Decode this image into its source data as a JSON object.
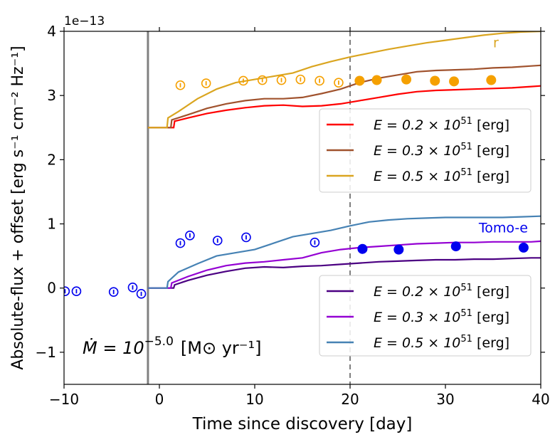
{
  "chart_data": {
    "type": "line",
    "xlabel": "Time since discovery [day]",
    "ylabel": "Absolute-flux + offset [erg s⁻¹ cm⁻² Hz⁻¹]",
    "y_multiplier_label": "1e−13",
    "xlim": [
      -10,
      40
    ],
    "ylim": [
      -1.5,
      4
    ],
    "x_ticks": [
      -10,
      0,
      10,
      20,
      30,
      40
    ],
    "x_tick_labels": [
      "−10",
      "0",
      "10",
      "20",
      "30",
      "40"
    ],
    "y_ticks": [
      -1,
      0,
      1,
      2,
      3,
      4
    ],
    "y_tick_labels": [
      "−1",
      "0",
      "1",
      "2",
      "3",
      "4"
    ],
    "vertical_lines": [
      {
        "x": -1.2,
        "style": "solid",
        "color": "#808080"
      },
      {
        "x": 20,
        "style": "dashed",
        "color": "#808080"
      }
    ],
    "annotation_mdot": {
      "prefix": "Ṁ = 10",
      "exponent": "−5.0",
      "unit": "[M⊙ yr⁻¹]"
    },
    "band_labels": [
      {
        "text": "r",
        "color": "#DAA520",
        "x": 35,
        "y": 3.75
      },
      {
        "text": "Tomo-e",
        "color": "#0000EE",
        "x": 33.5,
        "y": 0.87
      }
    ],
    "legends": [
      {
        "position": "right-upper",
        "entries": [
          {
            "label_prefix": "E = 0.2 × 10",
            "label_exp": "51",
            "label_suffix": " [erg]",
            "color": "#FF0000"
          },
          {
            "label_prefix": "E = 0.3 × 10",
            "label_exp": "51",
            "label_suffix": " [erg]",
            "color": "#A0522D"
          },
          {
            "label_prefix": "E = 0.5 × 10",
            "label_exp": "51",
            "label_suffix": " [erg]",
            "color": "#DAA520"
          }
        ]
      },
      {
        "position": "right-lower",
        "entries": [
          {
            "label_prefix": "E = 0.2 × 10",
            "label_exp": "51",
            "label_suffix": " [erg]",
            "color": "#4B0082"
          },
          {
            "label_prefix": "E = 0.3 × 10",
            "label_exp": "51",
            "label_suffix": " [erg]",
            "color": "#9400D3"
          },
          {
            "label_prefix": "E = 0.5 × 10",
            "label_exp": "51",
            "label_suffix": " [erg]",
            "color": "#4682B4"
          }
        ]
      }
    ],
    "series": [
      {
        "color": "#FF0000",
        "x": [
          -1.2,
          1.5,
          1.6,
          3,
          5,
          7,
          9,
          11,
          13,
          15,
          17,
          19,
          21,
          23,
          25,
          27,
          29,
          31,
          33,
          35,
          37,
          39,
          40
        ],
        "y": [
          2.5,
          2.5,
          2.6,
          2.65,
          2.72,
          2.77,
          2.81,
          2.84,
          2.85,
          2.83,
          2.84,
          2.87,
          2.92,
          2.97,
          3.02,
          3.06,
          3.08,
          3.09,
          3.1,
          3.11,
          3.12,
          3.14,
          3.15
        ]
      },
      {
        "color": "#A0522D",
        "x": [
          -1.2,
          1.2,
          1.3,
          3,
          5,
          7,
          9,
          11,
          13,
          15,
          17,
          19,
          21,
          23,
          25,
          27,
          29,
          31,
          33,
          35,
          37,
          39,
          40
        ],
        "y": [
          2.5,
          2.5,
          2.62,
          2.7,
          2.8,
          2.87,
          2.92,
          2.95,
          2.95,
          2.97,
          3.03,
          3.1,
          3.2,
          3.27,
          3.32,
          3.37,
          3.39,
          3.4,
          3.41,
          3.43,
          3.44,
          3.46,
          3.47
        ]
      },
      {
        "color": "#DAA520",
        "x": [
          -1.2,
          0.8,
          0.9,
          2,
          4,
          6,
          8,
          10,
          12,
          14,
          16,
          18,
          20,
          22,
          24,
          26,
          28,
          30,
          32,
          34,
          36,
          38,
          40
        ],
        "y": [
          2.5,
          2.5,
          2.65,
          2.75,
          2.95,
          3.1,
          3.2,
          3.25,
          3.3,
          3.35,
          3.45,
          3.53,
          3.6,
          3.66,
          3.72,
          3.77,
          3.82,
          3.86,
          3.9,
          3.94,
          3.97,
          3.99,
          4.0
        ]
      },
      {
        "color": "#4B0082",
        "x": [
          -1.2,
          1.5,
          1.6,
          3,
          5,
          7,
          9,
          11,
          13,
          15,
          17,
          19,
          21,
          23,
          25,
          27,
          29,
          31,
          33,
          35,
          37,
          39,
          40
        ],
        "y": [
          0,
          0,
          0.05,
          0.12,
          0.2,
          0.26,
          0.31,
          0.33,
          0.32,
          0.34,
          0.35,
          0.37,
          0.39,
          0.41,
          0.42,
          0.43,
          0.44,
          0.44,
          0.45,
          0.45,
          0.46,
          0.47,
          0.47
        ]
      },
      {
        "color": "#9400D3",
        "x": [
          -1.2,
          1.2,
          1.3,
          3,
          5,
          7,
          9,
          11,
          13,
          15,
          17,
          19,
          21,
          23,
          25,
          27,
          29,
          31,
          33,
          35,
          37,
          39,
          40
        ],
        "y": [
          0,
          0,
          0.08,
          0.18,
          0.28,
          0.35,
          0.39,
          0.41,
          0.44,
          0.47,
          0.55,
          0.6,
          0.63,
          0.65,
          0.67,
          0.69,
          0.7,
          0.71,
          0.71,
          0.72,
          0.72,
          0.72,
          0.73
        ]
      },
      {
        "color": "#4682B4",
        "x": [
          -1.2,
          0.8,
          0.9,
          2,
          4,
          6,
          8,
          10,
          12,
          14,
          16,
          18,
          20,
          22,
          24,
          26,
          28,
          30,
          32,
          34,
          36,
          38,
          40
        ],
        "y": [
          0,
          0,
          0.1,
          0.25,
          0.38,
          0.5,
          0.55,
          0.6,
          0.7,
          0.8,
          0.85,
          0.9,
          0.97,
          1.03,
          1.06,
          1.08,
          1.09,
          1.1,
          1.1,
          1.1,
          1.1,
          1.11,
          1.12
        ]
      }
    ],
    "points": [
      {
        "name": "r",
        "color": "#F5A000",
        "open": [
          {
            "x": 2.2,
            "y": 3.16
          },
          {
            "x": 4.9,
            "y": 3.19
          },
          {
            "x": 8.8,
            "y": 3.23
          },
          {
            "x": 10.8,
            "y": 3.24
          },
          {
            "x": 12.8,
            "y": 3.24
          },
          {
            "x": 14.8,
            "y": 3.25
          },
          {
            "x": 16.8,
            "y": 3.23
          },
          {
            "x": 18.8,
            "y": 3.2
          }
        ],
        "filled": [
          {
            "x": 21,
            "y": 3.23
          },
          {
            "x": 22.8,
            "y": 3.24
          },
          {
            "x": 25.9,
            "y": 3.25
          },
          {
            "x": 28.9,
            "y": 3.23
          },
          {
            "x": 30.9,
            "y": 3.22
          },
          {
            "x": 34.8,
            "y": 3.24
          }
        ]
      },
      {
        "name": "Tomo-e",
        "color": "#0000EE",
        "open": [
          {
            "x": -9.9,
            "y": -0.05
          },
          {
            "x": -8.7,
            "y": -0.05
          },
          {
            "x": -4.8,
            "y": -0.06
          },
          {
            "x": -2.8,
            "y": 0.01
          },
          {
            "x": -1.9,
            "y": -0.09
          },
          {
            "x": 3.2,
            "y": 0.82
          },
          {
            "x": 2.2,
            "y": 0.7
          },
          {
            "x": 6.1,
            "y": 0.74
          },
          {
            "x": 9.1,
            "y": 0.79
          },
          {
            "x": 16.3,
            "y": 0.71
          }
        ],
        "filled": [
          {
            "x": 21.3,
            "y": 0.61
          },
          {
            "x": 25.1,
            "y": 0.6
          },
          {
            "x": 31.1,
            "y": 0.65
          },
          {
            "x": 38.2,
            "y": 0.63
          }
        ]
      }
    ]
  }
}
